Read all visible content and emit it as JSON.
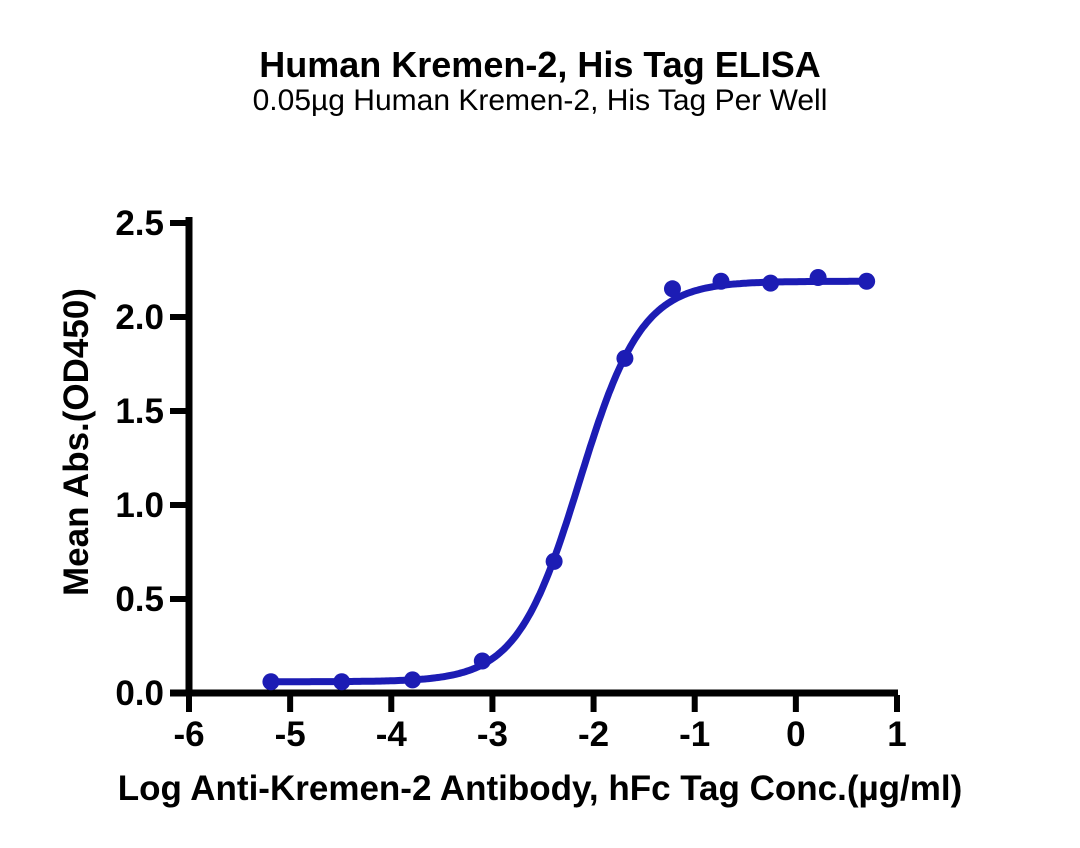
{
  "header": {
    "title": "Human Kremen-2, His Tag ELISA",
    "subtitle": "0.05µg Human Kremen-2, His Tag Per Well"
  },
  "chart_data": {
    "type": "scatter",
    "title": "Human Kremen-2, His Tag ELISA",
    "subtitle": "0.05µg Human Kremen-2, His Tag Per Well",
    "xlabel": "Log Anti-Kremen-2 Antibody, hFc Tag Conc.(µg/ml)",
    "ylabel": "Mean Abs.(OD450)",
    "xlim": [
      -6,
      1
    ],
    "ylim": [
      0,
      2.5
    ],
    "xticks": [
      "-6",
      "-5",
      "-4",
      "-3",
      "-2",
      "-1",
      "0",
      "1"
    ],
    "yticks": [
      "0.0",
      "0.5",
      "1.0",
      "1.5",
      "2.0",
      "2.5"
    ],
    "grid": false,
    "legend_position": "none",
    "series": [
      {
        "name": "Human Kremen-2, His Tag ELISA signal",
        "marker": "circle",
        "x": [
          -5.19,
          -4.49,
          -3.79,
          -3.1,
          -2.39,
          -1.69,
          -1.22,
          -0.74,
          -0.25,
          0.22,
          0.7
        ],
        "y": [
          0.06,
          0.06,
          0.07,
          0.17,
          0.7,
          1.78,
          2.15,
          2.19,
          2.18,
          2.21,
          2.19
        ]
      }
    ],
    "fit": {
      "model": "4PL sigmoid",
      "bottom": 0.06,
      "top": 2.19,
      "logEC50": -2.14,
      "hillslope": 1.41
    },
    "colors": {
      "curve": "#1c1cb4",
      "marker": "#1c1cb4",
      "axis": "#000000",
      "text": "#000000",
      "background": "#ffffff"
    }
  }
}
